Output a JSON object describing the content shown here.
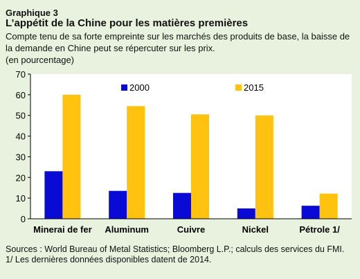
{
  "header": {
    "eyebrow": "Graphique 3",
    "title": "L’appétit de la Chine pour les matières premières",
    "subtitle": "Compte tenu de sa forte empreinte sur les marchés des produits de base, la baisse de la demande en Chine peut se répercuter sur les prix.",
    "unit": "(en pourcentage)"
  },
  "footer": {
    "sources": "Sources : World Bureau of Metal Statistics; Bloomberg L.P.; calculs des services du FMI.",
    "note": "1/ Les dernières données disponibles datent de 2014."
  },
  "colors": {
    "background": "#e9f2de",
    "plot_background": "#ffffff",
    "series_2000": "#0a0ad6",
    "series_2015": "#ffc20e"
  },
  "chart_data": {
    "type": "bar",
    "categories": [
      "Minerai de fer",
      "Aluminum",
      "Cuivre",
      "Nickel",
      "Pétrole 1/"
    ],
    "series": [
      {
        "name": "2000",
        "values": [
          23,
          13.5,
          12.5,
          5,
          6.3
        ]
      },
      {
        "name": "2015",
        "values": [
          60,
          54.5,
          50.5,
          50,
          12.2
        ]
      }
    ],
    "ylim": [
      0,
      70
    ],
    "yticks": [
      0,
      10,
      20,
      30,
      40,
      50,
      60,
      70
    ],
    "grid": false,
    "legend_position": "top, inside plot"
  }
}
